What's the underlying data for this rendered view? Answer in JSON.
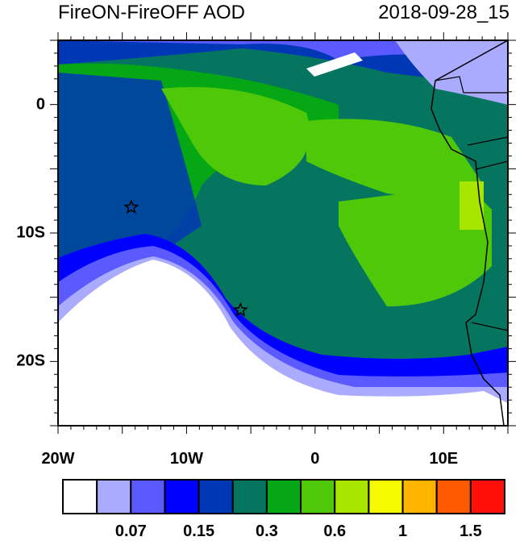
{
  "title_left": "FireON-FireOFF AOD",
  "title_right": "2018-09-28_15",
  "x_ticks": [
    {
      "label": "20W",
      "lon": -20
    },
    {
      "label": "10W",
      "lon": -10
    },
    {
      "label": "0",
      "lon": 0
    },
    {
      "label": "10E",
      "lon": 10
    }
  ],
  "y_ticks": [
    {
      "label": "0",
      "lat": 0
    },
    {
      "label": "10S",
      "lat": -10
    },
    {
      "label": "20S",
      "lat": -20
    }
  ],
  "extent": {
    "lon": [
      -20,
      15
    ],
    "lat": [
      -25,
      5
    ]
  },
  "markers": [
    {
      "name": "star",
      "lon": -14.3,
      "lat": -8
    },
    {
      "name": "star",
      "lon": -5.8,
      "lat": -16
    }
  ],
  "colorbar": {
    "colors": [
      "#ffffff",
      "#aaaaff",
      "#5a5aff",
      "#0000ff",
      "#0037b4",
      "#057560",
      "#05a814",
      "#50c80a",
      "#a8e600",
      "#f5fa00",
      "#ffb400",
      "#ff5a00",
      "#ff0f0a"
    ],
    "labels": [
      {
        "text": "0.07",
        "after_box": 2
      },
      {
        "text": "0.15",
        "after_box": 4
      },
      {
        "text": "0.3",
        "after_box": 6
      },
      {
        "text": "0.6",
        "after_box": 8
      },
      {
        "text": "1",
        "after_box": 10
      },
      {
        "text": "1.5",
        "after_box": 12
      }
    ]
  }
}
